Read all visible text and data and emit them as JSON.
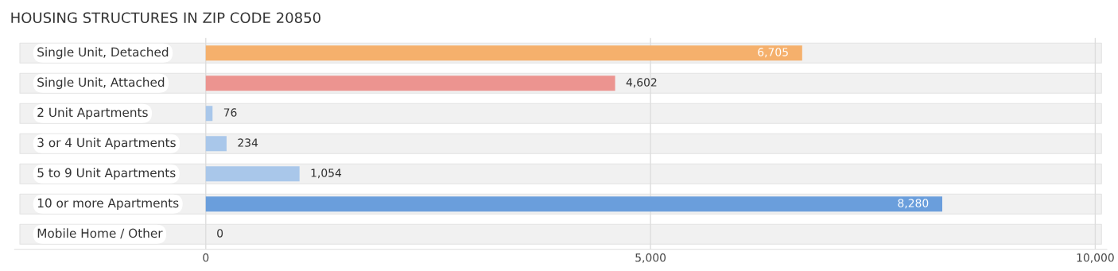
{
  "chart_data": {
    "type": "bar",
    "orientation": "horizontal",
    "title": "HOUSING STRUCTURES IN ZIP CODE 20850",
    "categories": [
      "Single Unit, Detached",
      "Single Unit, Attached",
      "2 Unit Apartments",
      "3 or 4 Unit Apartments",
      "5 to 9 Unit Apartments",
      "10 or more Apartments",
      "Mobile Home / Other"
    ],
    "values": [
      6705,
      4602,
      76,
      234,
      1054,
      8280,
      0
    ],
    "colors": [
      "#f5b06c",
      "#ec9490",
      "#a9c7ea",
      "#a9c7ea",
      "#a9c7ea",
      "#6a9edc",
      "#d3b5d3"
    ],
    "value_labels": [
      "6,705",
      "4,602",
      "76",
      "234",
      "1,054",
      "8,280",
      "0"
    ],
    "xlim": [
      -2150,
      10130
    ],
    "xticks": [
      0,
      {
        "value": 5000,
        "label": "5,000"
      },
      {
        "value": 10000,
        "label": "10,000"
      }
    ],
    "grid": "x"
  }
}
